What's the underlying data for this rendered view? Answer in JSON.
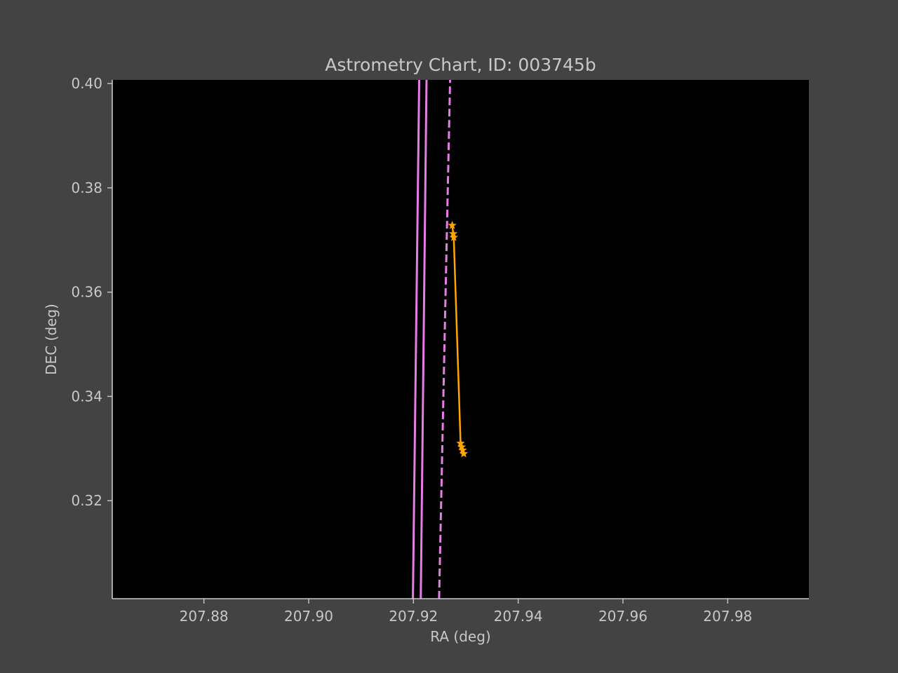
{
  "chart_data": {
    "type": "line",
    "title": "Astrometry Chart, ID: 003745b",
    "xlabel": "RA (deg)",
    "ylabel": "DEC (deg)",
    "xlim": [
      207.8625,
      207.9955
    ],
    "ylim": [
      0.3012,
      0.4007
    ],
    "xticks": [
      207.88,
      207.9,
      207.92,
      207.94,
      207.96,
      207.98
    ],
    "xtick_labels": [
      "207.88",
      "207.90",
      "207.92",
      "207.94",
      "207.96",
      "207.98"
    ],
    "yticks": [
      0.32,
      0.34,
      0.36,
      0.38,
      0.4
    ],
    "ytick_labels": [
      "0.32",
      "0.34",
      "0.36",
      "0.38",
      "0.40"
    ],
    "grid": false,
    "background": "#000000",
    "series": [
      {
        "style": "solid",
        "color": "#e57de5",
        "x": [
          207.9199,
          207.9211
        ],
        "y": [
          0.3012,
          0.4007
        ]
      },
      {
        "style": "solid",
        "color": "#e57de5",
        "x": [
          207.9214,
          207.9225
        ],
        "y": [
          0.3012,
          0.4007
        ]
      },
      {
        "style": "dashed",
        "color": "#e57de5",
        "x": [
          207.9249,
          207.927
        ],
        "y": [
          0.3012,
          0.4007
        ]
      },
      {
        "style": "line-with-star-markers",
        "color": "#ffa500",
        "x": [
          207.9274,
          207.9276,
          207.9277,
          207.929,
          207.9292,
          207.9294,
          207.9296
        ],
        "y": [
          0.3728,
          0.3712,
          0.3705,
          0.331,
          0.3303,
          0.3297,
          0.329
        ]
      }
    ]
  }
}
